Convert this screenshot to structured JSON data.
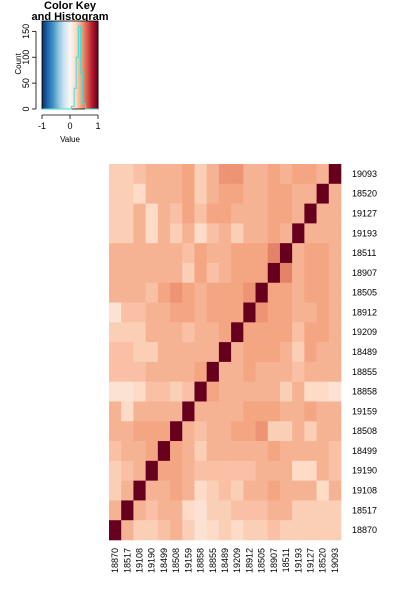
{
  "chart_data": {
    "type": "heatmap",
    "key": {
      "title_line1": "Color Key",
      "title_line2": "and Histogram",
      "xlabel": "Value",
      "ylabel": "Count",
      "x_ticks": [
        "-1",
        "0",
        "1"
      ],
      "y_ticks": [
        "0",
        "50",
        "100",
        "150"
      ],
      "xlim": [
        -1,
        1
      ],
      "ylim": [
        0,
        170
      ],
      "colors": [
        "#053061",
        "#2166ac",
        "#4393c3",
        "#92c5de",
        "#d1e5f0",
        "#f7f7f7",
        "#fddbc7",
        "#f4a582",
        "#d6604d",
        "#b2182b",
        "#67001f"
      ],
      "histogram_line_color": "#40e0d0"
    },
    "row_labels": [
      "19093",
      "18520",
      "19127",
      "19193",
      "18511",
      "18907",
      "18505",
      "18912",
      "19209",
      "18489",
      "18855",
      "18858",
      "19159",
      "18508",
      "18499",
      "19190",
      "19108",
      "18517",
      "18870"
    ],
    "col_labels": [
      "18870",
      "18517",
      "19108",
      "19190",
      "18499",
      "18508",
      "19159",
      "18858",
      "18855",
      "18489",
      "19209",
      "18912",
      "18505",
      "18907",
      "18511",
      "19193",
      "19127",
      "18520",
      "19093"
    ],
    "values": [
      [
        0.25,
        0.25,
        0.3,
        0.35,
        0.35,
        0.35,
        0.4,
        0.25,
        0.35,
        0.45,
        0.45,
        0.35,
        0.35,
        0.4,
        0.35,
        0.4,
        0.4,
        0.35,
        1.0
      ],
      [
        0.25,
        0.25,
        0.2,
        0.35,
        0.35,
        0.35,
        0.4,
        0.25,
        0.35,
        0.4,
        0.4,
        0.35,
        0.35,
        0.4,
        0.4,
        0.35,
        0.35,
        1.0,
        0.35
      ],
      [
        0.25,
        0.25,
        0.35,
        0.2,
        0.35,
        0.3,
        0.4,
        0.3,
        0.4,
        0.4,
        0.35,
        0.35,
        0.35,
        0.4,
        0.4,
        0.35,
        1.0,
        0.35,
        0.35
      ],
      [
        0.25,
        0.25,
        0.35,
        0.2,
        0.35,
        0.25,
        0.35,
        0.2,
        0.3,
        0.35,
        0.25,
        0.35,
        0.35,
        0.4,
        0.35,
        1.0,
        0.35,
        0.35,
        0.35
      ],
      [
        0.35,
        0.35,
        0.35,
        0.35,
        0.35,
        0.35,
        0.3,
        0.4,
        0.35,
        0.35,
        0.4,
        0.4,
        0.4,
        0.5,
        1.0,
        0.35,
        0.4,
        0.4,
        0.35
      ],
      [
        0.35,
        0.35,
        0.35,
        0.35,
        0.35,
        0.35,
        0.25,
        0.4,
        0.3,
        0.35,
        0.4,
        0.4,
        0.4,
        1.0,
        0.5,
        0.35,
        0.4,
        0.4,
        0.35
      ],
      [
        0.35,
        0.35,
        0.35,
        0.3,
        0.4,
        0.45,
        0.4,
        0.35,
        0.4,
        0.4,
        0.4,
        0.45,
        1.0,
        0.4,
        0.4,
        0.35,
        0.4,
        0.4,
        0.35
      ],
      [
        0.15,
        0.3,
        0.3,
        0.35,
        0.35,
        0.4,
        0.4,
        0.35,
        0.4,
        0.4,
        0.4,
        1.0,
        0.45,
        0.4,
        0.4,
        0.35,
        0.35,
        0.4,
        0.35
      ],
      [
        0.25,
        0.25,
        0.25,
        0.35,
        0.35,
        0.35,
        0.3,
        0.35,
        0.35,
        0.4,
        1.0,
        0.4,
        0.4,
        0.4,
        0.4,
        0.3,
        0.4,
        0.4,
        0.35
      ],
      [
        0.3,
        0.3,
        0.25,
        0.25,
        0.35,
        0.35,
        0.35,
        0.35,
        0.35,
        1.0,
        0.35,
        0.4,
        0.4,
        0.4,
        0.35,
        0.25,
        0.4,
        0.35,
        0.35
      ],
      [
        0.3,
        0.3,
        0.3,
        0.35,
        0.35,
        0.35,
        0.35,
        0.4,
        1.0,
        0.35,
        0.35,
        0.4,
        0.35,
        0.35,
        0.35,
        0.3,
        0.35,
        0.35,
        0.35
      ],
      [
        0.15,
        0.15,
        0.2,
        0.3,
        0.3,
        0.25,
        0.3,
        1.0,
        0.4,
        0.35,
        0.35,
        0.35,
        0.35,
        0.35,
        0.25,
        0.35,
        0.2,
        0.2,
        0.15
      ],
      [
        0.35,
        0.2,
        0.35,
        0.35,
        0.35,
        0.35,
        1.0,
        0.35,
        0.35,
        0.35,
        0.35,
        0.4,
        0.4,
        0.4,
        0.35,
        0.35,
        0.4,
        0.35,
        0.35
      ],
      [
        0.35,
        0.35,
        0.4,
        0.4,
        0.4,
        1.0,
        0.35,
        0.3,
        0.35,
        0.35,
        0.4,
        0.4,
        0.45,
        0.25,
        0.25,
        0.35,
        0.25,
        0.35,
        0.35
      ],
      [
        0.3,
        0.35,
        0.35,
        0.4,
        1.0,
        0.4,
        0.35,
        0.25,
        0.35,
        0.35,
        0.35,
        0.35,
        0.35,
        0.4,
        0.35,
        0.35,
        0.35,
        0.35,
        0.3
      ],
      [
        0.25,
        0.3,
        0.35,
        1.0,
        0.4,
        0.4,
        0.35,
        0.3,
        0.3,
        0.3,
        0.3,
        0.3,
        0.35,
        0.35,
        0.35,
        0.2,
        0.2,
        0.35,
        0.3
      ],
      [
        0.25,
        0.35,
        1.0,
        0.35,
        0.35,
        0.4,
        0.35,
        0.2,
        0.25,
        0.3,
        0.25,
        0.35,
        0.35,
        0.4,
        0.35,
        0.35,
        0.35,
        0.2,
        0.35
      ],
      [
        0.35,
        1.0,
        0.35,
        0.3,
        0.35,
        0.35,
        0.2,
        0.15,
        0.25,
        0.25,
        0.3,
        0.3,
        0.3,
        0.35,
        0.35,
        0.25,
        0.25,
        0.25,
        0.25
      ],
      [
        1.0,
        0.35,
        0.25,
        0.25,
        0.3,
        0.35,
        0.25,
        0.15,
        0.2,
        0.25,
        0.2,
        0.25,
        0.25,
        0.3,
        0.25,
        0.25,
        0.25,
        0.25,
        0.25
      ]
    ]
  }
}
